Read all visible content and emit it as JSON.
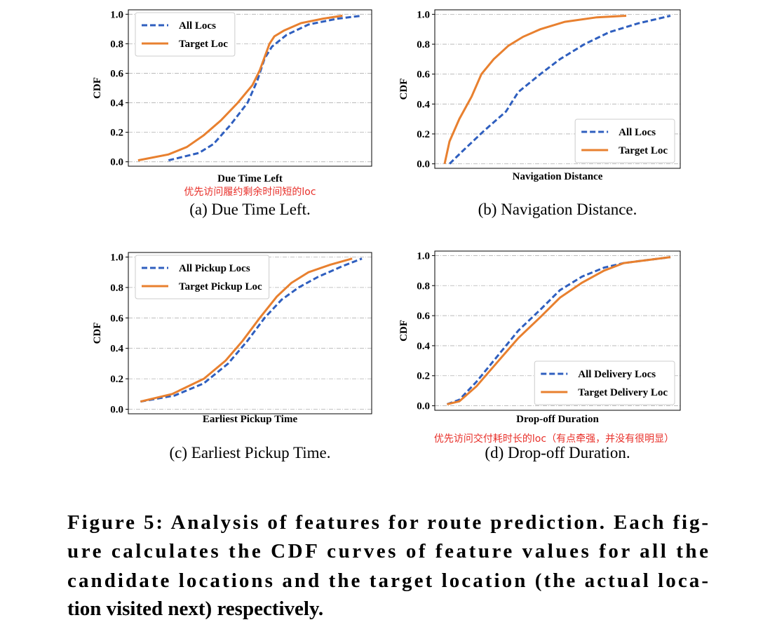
{
  "chart_data": [
    {
      "type": "line",
      "xlabel": "Due Time Left",
      "ylabel": "CDF",
      "annotation": "优先访问履约剩余时间短的loc",
      "caption": "(a)  Due Time Left.",
      "xlim": [
        0,
        1
      ],
      "ylim": [
        -0.03,
        1.03
      ],
      "yticks": [
        {
          "value": 0,
          "label": "0.0"
        },
        0.2,
        0.4,
        0.6,
        0.8,
        {
          "value": 1,
          "label": "1.0"
        }
      ],
      "grid": true,
      "legend": "upper left",
      "series": [
        {
          "name": "All Locs",
          "color": "#2f5fbf",
          "linestyle": "dashed",
          "x": [
            0.165,
            0.29,
            0.35,
            0.42,
            0.49,
            0.53,
            0.56,
            0.59,
            0.65,
            0.74,
            0.86,
            0.96
          ],
          "values": [
            0.01,
            0.06,
            0.12,
            0.25,
            0.4,
            0.55,
            0.7,
            0.78,
            0.86,
            0.93,
            0.97,
            0.99
          ]
        },
        {
          "name": "Target Loc",
          "color": "#e8802f",
          "linestyle": "solid",
          "x": [
            0.04,
            0.165,
            0.24,
            0.31,
            0.38,
            0.45,
            0.51,
            0.54,
            0.58,
            0.6,
            0.64,
            0.71,
            0.8,
            0.88
          ],
          "values": [
            0.01,
            0.05,
            0.1,
            0.18,
            0.28,
            0.4,
            0.52,
            0.62,
            0.8,
            0.85,
            0.89,
            0.94,
            0.97,
            0.99
          ]
        }
      ]
    },
    {
      "type": "line",
      "xlabel": "Navigation Distance",
      "ylabel": "CDF",
      "caption": "(b)  Navigation Distance.",
      "xlim": [
        0,
        1
      ],
      "ylim": [
        -0.03,
        1.03
      ],
      "yticks": [
        {
          "value": 0,
          "label": "0.0"
        },
        0.2,
        0.4,
        0.6,
        0.8,
        {
          "value": 1,
          "label": "1.0"
        }
      ],
      "grid": true,
      "legend": "lower right",
      "series": [
        {
          "name": "All Locs",
          "color": "#2f5fbf",
          "linestyle": "dashed",
          "x": [
            0.06,
            0.11,
            0.2,
            0.29,
            0.34,
            0.43,
            0.51,
            0.61,
            0.71,
            0.83,
            0.96
          ],
          "values": [
            0.0,
            0.08,
            0.22,
            0.35,
            0.48,
            0.6,
            0.7,
            0.8,
            0.88,
            0.94,
            0.99
          ]
        },
        {
          "name": "Target Loc",
          "color": "#e8802f",
          "linestyle": "solid",
          "x": [
            0.04,
            0.06,
            0.1,
            0.15,
            0.19,
            0.24,
            0.3,
            0.36,
            0.43,
            0.53,
            0.66,
            0.78
          ],
          "values": [
            0.0,
            0.15,
            0.3,
            0.45,
            0.6,
            0.7,
            0.79,
            0.85,
            0.9,
            0.95,
            0.98,
            0.99
          ]
        }
      ]
    },
    {
      "type": "line",
      "xlabel": "Earliest Pickup Time",
      "ylabel": "CDF",
      "caption": "(c)  Earliest Pickup Time.",
      "xlim": [
        0,
        1
      ],
      "ylim": [
        -0.03,
        1.03
      ],
      "yticks": [
        {
          "value": 0,
          "label": "0.0"
        },
        0.2,
        0.4,
        0.6,
        0.8,
        {
          "value": 1,
          "label": "1.0"
        }
      ],
      "grid": true,
      "legend": "upper left",
      "series": [
        {
          "name": "All Pickup Locs",
          "color": "#2f5fbf",
          "linestyle": "dashed",
          "x": [
            0.05,
            0.19,
            0.31,
            0.41,
            0.49,
            0.56,
            0.63,
            0.7,
            0.78,
            0.88,
            0.96
          ],
          "values": [
            0.05,
            0.09,
            0.17,
            0.3,
            0.45,
            0.6,
            0.72,
            0.8,
            0.87,
            0.94,
            0.99
          ]
        },
        {
          "name": "Target Pickup Loc",
          "color": "#e8802f",
          "linestyle": "solid",
          "x": [
            0.05,
            0.18,
            0.31,
            0.4,
            0.47,
            0.54,
            0.61,
            0.67,
            0.74,
            0.83,
            0.92
          ],
          "values": [
            0.05,
            0.1,
            0.2,
            0.32,
            0.45,
            0.6,
            0.74,
            0.83,
            0.9,
            0.95,
            0.99
          ]
        }
      ]
    },
    {
      "type": "line",
      "xlabel": "Drop-off Duration",
      "ylabel": "CDF",
      "annotation": "优先访问交付耗时长的loc（有点牵强，并没有很明显）",
      "caption": "(d)  Drop-off Duration.",
      "xlim": [
        0,
        1
      ],
      "ylim": [
        -0.03,
        1.03
      ],
      "yticks": [
        {
          "value": 0,
          "label": "0.0"
        },
        0.2,
        0.4,
        0.6,
        0.8,
        {
          "value": 1,
          "label": "1.0"
        }
      ],
      "grid": true,
      "legend": "lower right",
      "series": [
        {
          "name": "All Delivery Locs",
          "color": "#2f5fbf",
          "linestyle": "dashed",
          "x": [
            0.05,
            0.1,
            0.17,
            0.26,
            0.34,
            0.43,
            0.51,
            0.6,
            0.69,
            0.77,
            0.96
          ],
          "values": [
            0.01,
            0.04,
            0.16,
            0.34,
            0.5,
            0.64,
            0.77,
            0.86,
            0.92,
            0.95,
            0.99
          ]
        },
        {
          "name": "Target Delivery Loc",
          "color": "#e8802f",
          "linestyle": "solid",
          "x": [
            0.05,
            0.1,
            0.17,
            0.26,
            0.34,
            0.43,
            0.51,
            0.6,
            0.69,
            0.77,
            0.96
          ],
          "values": [
            0.01,
            0.03,
            0.13,
            0.3,
            0.45,
            0.59,
            0.72,
            0.82,
            0.9,
            0.95,
            0.99
          ]
        }
      ]
    }
  ],
  "figure_caption": [
    "Figure 5: Analysis of features for route prediction. Each fig-",
    "ure calculates the CDF curves of feature values for all the",
    "candidate locations and the target location (the actual loca-",
    "tion visited next) respectively."
  ]
}
